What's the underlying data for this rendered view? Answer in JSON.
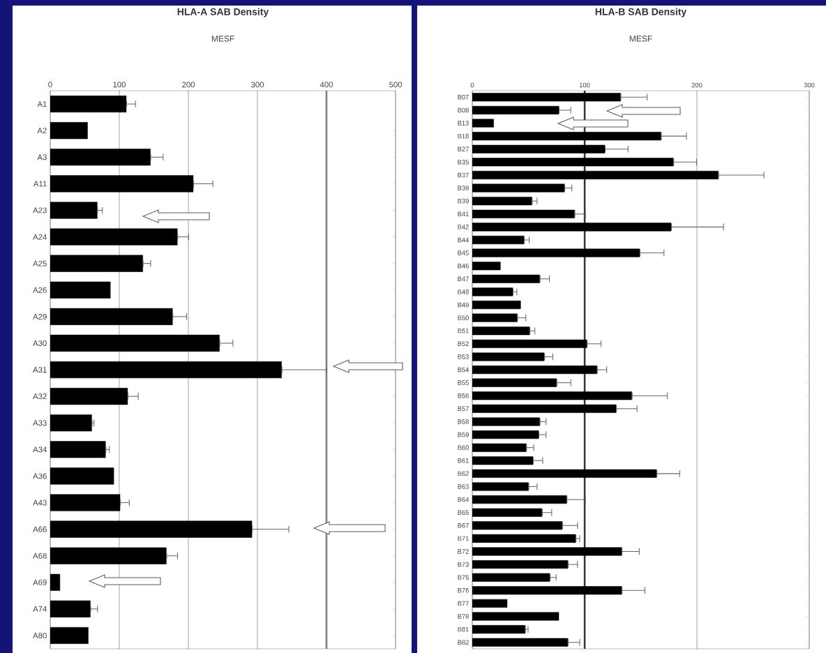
{
  "chart_data": [
    {
      "type": "bar",
      "orientation": "horizontal",
      "title": "HLA-A SAB Density",
      "xlabel": "MESF",
      "categories": [
        "A1",
        "A2",
        "A3",
        "A11",
        "A23",
        "A24",
        "A25",
        "A26",
        "A29",
        "A30",
        "A31",
        "A32",
        "A33",
        "A34",
        "A36",
        "A43",
        "A66",
        "A68",
        "A69",
        "A74",
        "A80"
      ],
      "values": [
        110,
        54,
        145,
        207,
        68,
        184,
        134,
        87,
        177,
        245,
        335,
        112,
        60,
        80,
        92,
        101,
        292,
        168,
        14,
        58,
        55
      ],
      "errors": [
        [
          110,
          124
        ],
        null,
        [
          145,
          164
        ],
        [
          207,
          236
        ],
        [
          68,
          76
        ],
        [
          184,
          201
        ],
        [
          134,
          146
        ],
        null,
        [
          177,
          198
        ],
        [
          245,
          265
        ],
        [
          335,
          401
        ],
        [
          112,
          128
        ],
        [
          60,
          64
        ],
        [
          80,
          86
        ],
        null,
        [
          101,
          115
        ],
        [
          292,
          346
        ],
        [
          168,
          185
        ],
        null,
        [
          58,
          69
        ],
        null
      ],
      "color": "#000000",
      "xlim": [
        0,
        500
      ],
      "xticks": [
        0,
        100,
        200,
        300,
        400,
        500
      ],
      "grid": "x",
      "ref_lines": [
        {
          "axis": "x",
          "value": 400,
          "color": "#7f7f7f"
        }
      ]
    },
    {
      "type": "bar",
      "orientation": "horizontal",
      "title": "HLA-B SAB Density",
      "xlabel": "MESF",
      "categories": [
        "B07",
        "B08",
        "B13",
        "B18",
        "B27",
        "B35",
        "B37",
        "B38",
        "B39",
        "B41",
        "B42",
        "B44",
        "B45",
        "B46",
        "B47",
        "B48",
        "B49",
        "B50",
        "B51",
        "B52",
        "B53",
        "B54",
        "B55",
        "B56",
        "B57",
        "B58",
        "B59",
        "B60",
        "B61",
        "B62",
        "B63",
        "B64",
        "B65",
        "B67",
        "B71",
        "B72",
        "B73",
        "B75",
        "B76",
        "B77",
        "B78",
        "B81",
        "B82"
      ],
      "values": [
        132,
        77,
        19,
        168,
        118,
        179,
        219,
        82,
        53,
        91,
        177,
        46,
        149,
        25,
        60,
        36,
        43,
        40,
        51,
        102,
        64,
        111,
        75,
        142,
        128,
        60,
        59,
        48,
        54,
        164,
        50,
        84,
        62,
        80,
        92,
        133,
        85,
        69,
        133,
        31,
        77,
        47,
        85
      ],
      "errors": [
        [
          132,
          156
        ],
        [
          77,
          88
        ],
        null,
        [
          168,
          191
        ],
        [
          118,
          139
        ],
        [
          179,
          200
        ],
        [
          219,
          260
        ],
        [
          82,
          89
        ],
        [
          53,
          58
        ],
        [
          91,
          101
        ],
        [
          177,
          224
        ],
        [
          46,
          51
        ],
        [
          149,
          171
        ],
        null,
        [
          60,
          69
        ],
        [
          36,
          40
        ],
        null,
        [
          40,
          48
        ],
        [
          51,
          56
        ],
        [
          102,
          115
        ],
        [
          64,
          72
        ],
        [
          111,
          120
        ],
        [
          75,
          88
        ],
        [
          142,
          174
        ],
        [
          128,
          147
        ],
        [
          60,
          66
        ],
        [
          59,
          66
        ],
        [
          48,
          55
        ],
        [
          54,
          63
        ],
        [
          164,
          185
        ],
        [
          50,
          58
        ],
        [
          84,
          101
        ],
        [
          62,
          71
        ],
        [
          80,
          94
        ],
        [
          92,
          96
        ],
        [
          133,
          149
        ],
        [
          85,
          94
        ],
        [
          69,
          75
        ],
        [
          133,
          154
        ],
        null,
        null,
        [
          47,
          50
        ],
        [
          85,
          96
        ]
      ],
      "color": "#000000",
      "xlim": [
        0,
        300
      ],
      "xticks": [
        0,
        100,
        200,
        300
      ],
      "grid": "x",
      "ref_lines": [
        {
          "axis": "x",
          "value": 100,
          "color": "#333333"
        }
      ]
    }
  ]
}
